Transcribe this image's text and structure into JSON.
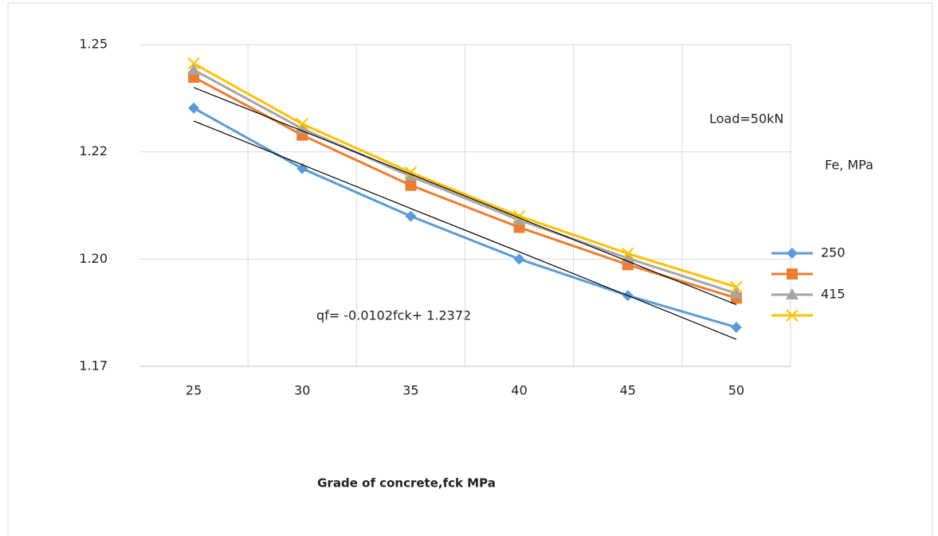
{
  "chart_data": {
    "type": "line",
    "x_label": "Grade of concrete,fck  MPa",
    "annotations": [
      "Load=50kN",
      "Fe, MPa",
      "qf= -0.0102fck+ 1.2372"
    ],
    "categories": [
      25,
      30,
      35,
      40,
      45,
      50
    ],
    "series": [
      {
        "name": "250",
        "color": "#5b9bd5",
        "marker": "diamond",
        "values": [
          1.2352,
          1.2211,
          1.21,
          1.2,
          1.1915,
          1.1841
        ]
      },
      {
        "color": "#ed7d31",
        "marker": "square",
        "values": [
          1.2424,
          1.2289,
          1.2172,
          1.2074,
          1.1987,
          1.1909
        ]
      },
      {
        "name": "415",
        "color": "#a5a5a5",
        "marker": "triangle",
        "values": [
          1.2441,
          1.2304,
          1.2193,
          1.2091,
          1.2002,
          1.192
        ]
      },
      {
        "color": "#ffc000",
        "marker": "x",
        "values": [
          1.2456,
          1.2315,
          1.2202,
          1.21,
          1.2013,
          1.1935
        ]
      }
    ],
    "trendlines": [
      {
        "color": "#000000",
        "values": [
          1.2322,
          1.222,
          1.2118,
          1.2017,
          1.1915,
          1.1813
        ]
      },
      {
        "color": "#000000",
        "values": [
          1.24,
          1.2299,
          1.2198,
          1.2096,
          1.1995,
          1.1894
        ]
      }
    ],
    "ylim": [
      1.175,
      1.25
    ],
    "yticks": [
      {
        "value": 1.175,
        "label": "1.17"
      },
      {
        "value": 1.2,
        "label": "1.20"
      },
      {
        "value": 1.225,
        "label": "1.22"
      },
      1.25
    ],
    "grid": true
  }
}
